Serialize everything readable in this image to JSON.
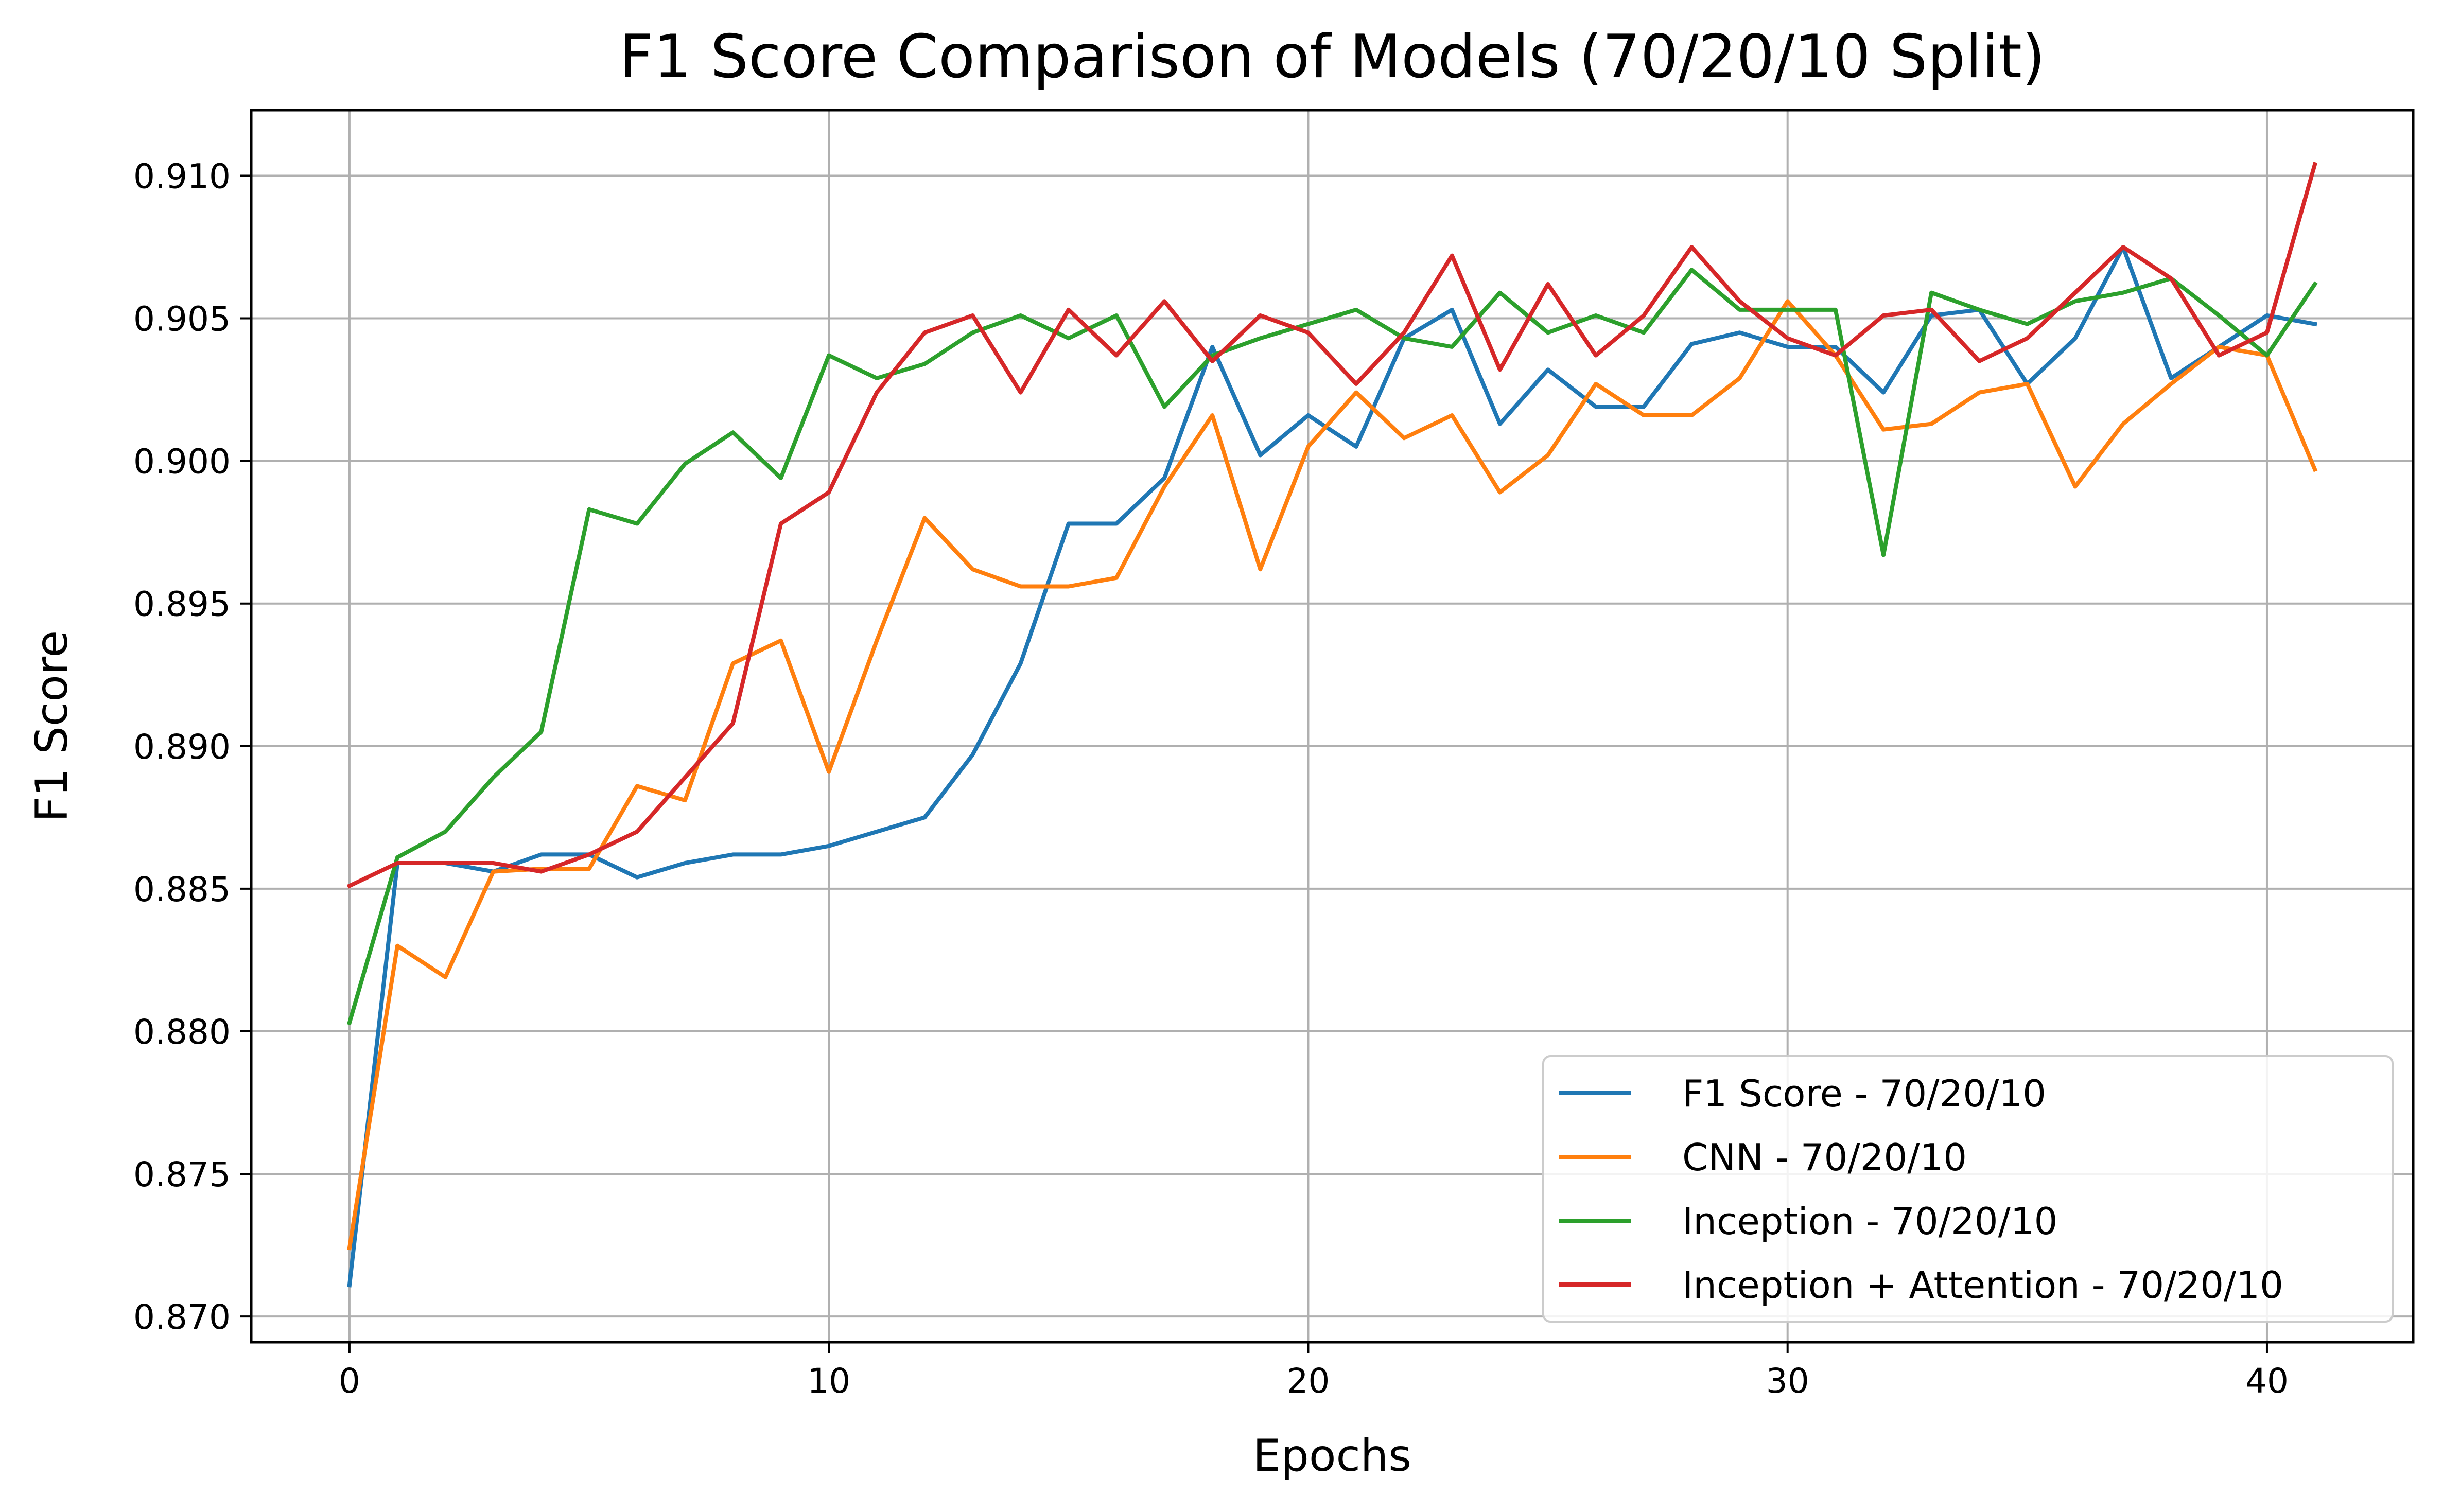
{
  "chart_data": {
    "type": "line",
    "title": "F1 Score Comparison of Models (70/20/10 Split)",
    "xlabel": "Epochs",
    "ylabel": "F1 Score",
    "xlim": [
      -2.05,
      43.05
    ],
    "ylim": [
      0.8691,
      0.9123
    ],
    "xticks": [
      0,
      10,
      20,
      30,
      40
    ],
    "yticks": [
      0.87,
      0.875,
      0.88,
      0.885,
      0.89,
      0.895,
      0.9,
      0.905,
      0.91
    ],
    "xtick_labels": [
      "0",
      "10",
      "20",
      "30",
      "40"
    ],
    "ytick_labels": [
      "0.870",
      "0.875",
      "0.880",
      "0.885",
      "0.890",
      "0.895",
      "0.900",
      "0.905",
      "0.910"
    ],
    "grid": true,
    "legend_position": "lower-right",
    "x": [
      0,
      1,
      2,
      3,
      4,
      5,
      6,
      7,
      8,
      9,
      10,
      11,
      12,
      13,
      14,
      15,
      16,
      17,
      18,
      19,
      20,
      21,
      22,
      23,
      24,
      25,
      26,
      27,
      28,
      29,
      30,
      31,
      32,
      33,
      34,
      35,
      36,
      37,
      38,
      39,
      40,
      41
    ],
    "series": [
      {
        "name": "F1 Score - 70/20/10",
        "color": "#1f77b4",
        "values": [
          0.8711,
          0.8859,
          0.8859,
          0.8856,
          0.8862,
          0.8862,
          0.8854,
          0.8859,
          0.8862,
          0.8862,
          0.8865,
          0.887,
          0.8875,
          0.8897,
          0.8929,
          0.8978,
          0.8978,
          0.8994,
          0.904,
          0.9002,
          0.9016,
          0.9005,
          0.9043,
          0.9053,
          0.9013,
          0.9032,
          0.9019,
          0.9019,
          0.9041,
          0.9045,
          0.904,
          0.904,
          0.9024,
          0.9051,
          0.9053,
          0.9027,
          0.9043,
          0.9075,
          0.9029,
          0.904,
          0.9051,
          0.9048
        ]
      },
      {
        "name": "CNN - 70/20/10",
        "color": "#ff7f0e",
        "values": [
          0.8724,
          0.883,
          0.8819,
          0.8856,
          0.8857,
          0.8857,
          0.8886,
          0.8881,
          0.8929,
          0.8937,
          0.8891,
          0.8937,
          0.898,
          0.8962,
          0.8956,
          0.8956,
          0.8959,
          0.8991,
          0.9016,
          0.8962,
          0.9005,
          0.9024,
          0.9008,
          0.9016,
          0.8989,
          0.9002,
          0.9027,
          0.9016,
          0.9016,
          0.9029,
          0.9056,
          0.9037,
          0.9011,
          0.9013,
          0.9024,
          0.9027,
          0.8991,
          0.9013,
          0.9027,
          0.904,
          0.9037,
          0.8997
        ]
      },
      {
        "name": "Inception - 70/20/10",
        "color": "#2ca02c",
        "values": [
          0.8803,
          0.8861,
          0.887,
          0.8889,
          0.8905,
          0.8983,
          0.8978,
          0.8999,
          0.901,
          0.8994,
          0.9037,
          0.9029,
          0.9034,
          0.9045,
          0.9051,
          0.9043,
          0.9051,
          0.9019,
          0.9037,
          0.9043,
          0.9048,
          0.9053,
          0.9043,
          0.904,
          0.9059,
          0.9045,
          0.9051,
          0.9045,
          0.9067,
          0.9053,
          0.9053,
          0.9053,
          0.8967,
          0.9059,
          0.9053,
          0.9048,
          0.9056,
          0.9059,
          0.9064,
          0.9051,
          0.9037,
          0.9062
        ]
      },
      {
        "name": "Inception + Attention - 70/20/10",
        "color": "#d62728",
        "values": [
          0.8851,
          0.8859,
          0.8859,
          0.8859,
          0.8856,
          0.8862,
          0.887,
          0.8889,
          0.8908,
          0.8978,
          0.8989,
          0.9024,
          0.9045,
          0.9051,
          0.9024,
          0.9053,
          0.9037,
          0.9056,
          0.9035,
          0.9051,
          0.9045,
          0.9027,
          0.9045,
          0.9072,
          0.9032,
          0.9062,
          0.9037,
          0.9051,
          0.9075,
          0.9056,
          0.9043,
          0.9037,
          0.9051,
          0.9053,
          0.9035,
          0.9043,
          0.9059,
          0.9075,
          0.9064,
          0.9037,
          0.9045,
          0.9104
        ]
      }
    ]
  }
}
